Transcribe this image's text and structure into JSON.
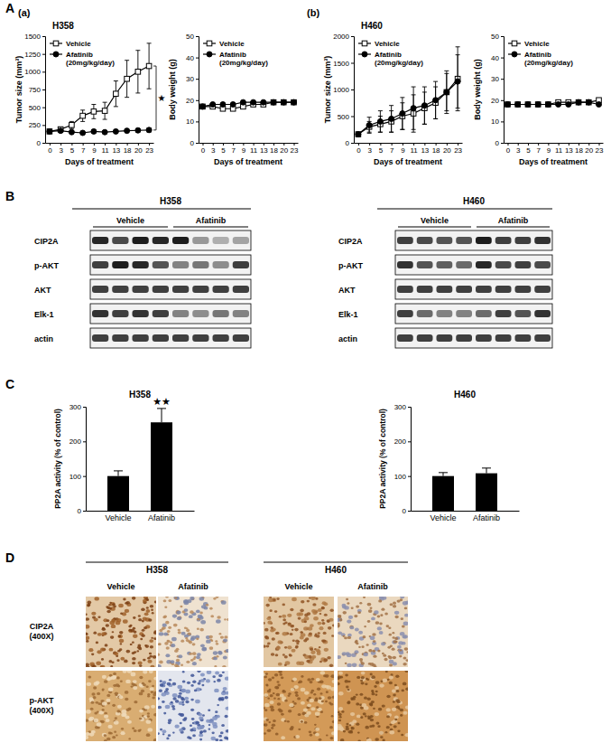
{
  "figure": {
    "panel_labels": [
      "A",
      "B",
      "C",
      "D"
    ],
    "subpanel_labels": [
      "(a)",
      "(b)"
    ]
  },
  "chart_data": [
    {
      "type": "line",
      "title": "H358",
      "x_label": "Days of treatment",
      "y_label": "Tumor size (mm³)",
      "categories": [
        "0",
        "3",
        "5",
        "7",
        "9",
        "11",
        "13",
        "18",
        "20",
        "23"
      ],
      "ylim": [
        0,
        1500
      ],
      "yticks": [
        0,
        250,
        500,
        750,
        1000,
        1250,
        1500
      ],
      "legend": "upper left",
      "annotations": [
        {
          "text": "★"
        }
      ],
      "series": [
        {
          "name": "Vehicle",
          "color": "#000000",
          "marker": "square-open",
          "values": [
            160,
            190,
            250,
            380,
            440,
            450,
            690,
            900,
            1000,
            1080
          ],
          "errors": [
            20,
            30,
            50,
            80,
            100,
            120,
            180,
            260,
            300,
            320
          ]
        },
        {
          "name": "Afatinib (20mg/kg/day)",
          "color": "#000000",
          "marker": "circle",
          "values": [
            160,
            170,
            150,
            140,
            160,
            150,
            160,
            170,
            175,
            180
          ],
          "errors": [
            15,
            20,
            20,
            20,
            25,
            20,
            20,
            25,
            25,
            30
          ]
        }
      ]
    },
    {
      "type": "line",
      "x_label": "Days of treatment",
      "y_label": "Body weight (g)",
      "categories": [
        "0",
        "3",
        "5",
        "7",
        "9",
        "11",
        "13",
        "18",
        "20",
        "23"
      ],
      "ylim": [
        0,
        50
      ],
      "yticks": [
        0,
        10,
        20,
        30,
        40,
        50
      ],
      "legend": "upper left",
      "series": [
        {
          "name": "Vehicle",
          "color": "#000000",
          "marker": "square-open",
          "values": [
            17,
            17,
            16,
            16,
            17,
            18,
            18,
            19,
            19,
            19
          ]
        },
        {
          "name": "Afatinib (20mg/kg/day)",
          "color": "#000000",
          "marker": "circle",
          "values": [
            17,
            18,
            18,
            18,
            19,
            19,
            19,
            19,
            19,
            19
          ]
        }
      ]
    },
    {
      "type": "line",
      "title": "H460",
      "x_label": "Days of treatment",
      "y_label": "Tumor size (mm³)",
      "categories": [
        "0",
        "3",
        "5",
        "7",
        "9",
        "11",
        "13",
        "18",
        "20",
        "23"
      ],
      "ylim": [
        0,
        2000
      ],
      "yticks": [
        0,
        500,
        1000,
        1500,
        2000
      ],
      "legend": "upper left",
      "series": [
        {
          "name": "Vehicle",
          "color": "#000000",
          "marker": "square-open",
          "values": [
            160,
            300,
            350,
            400,
            500,
            550,
            650,
            750,
            950,
            1200
          ],
          "errors": [
            20,
            100,
            150,
            200,
            250,
            350,
            300,
            300,
            350,
            600
          ]
        },
        {
          "name": "Afatinib (20mg/kg/day)",
          "color": "#000000",
          "marker": "circle",
          "values": [
            160,
            330,
            400,
            450,
            550,
            650,
            700,
            800,
            950,
            1150
          ],
          "errors": [
            20,
            150,
            200,
            250,
            300,
            400,
            350,
            350,
            400,
            500
          ]
        }
      ]
    },
    {
      "type": "line",
      "x_label": "Days of treatment",
      "y_label": "Body weight (g)",
      "categories": [
        "0",
        "3",
        "5",
        "7",
        "9",
        "11",
        "13",
        "18",
        "20",
        "23"
      ],
      "ylim": [
        0,
        50
      ],
      "yticks": [
        0,
        10,
        20,
        30,
        40,
        50
      ],
      "legend": "upper left",
      "series": [
        {
          "name": "Vehicle",
          "color": "#000000",
          "marker": "square-open",
          "values": [
            18,
            18,
            18,
            18,
            18,
            19,
            19,
            19,
            19,
            20
          ]
        },
        {
          "name": "Afatinib (20mg/kg/day)",
          "color": "#000000",
          "marker": "circle",
          "values": [
            18,
            18,
            18,
            18,
            18,
            18,
            18,
            19,
            19,
            18
          ]
        }
      ]
    },
    {
      "type": "bar",
      "title": "H358",
      "y_label": "PP2A activity (% of control)",
      "categories": [
        "Vehicle",
        "Afatinib"
      ],
      "values": [
        100,
        255
      ],
      "errors": [
        15,
        40
      ],
      "color": "#000000",
      "ylim": [
        0,
        300
      ],
      "yticks": [
        0,
        100,
        200,
        300
      ],
      "annotations": [
        {
          "text": "★★"
        }
      ]
    },
    {
      "type": "bar",
      "title": "H460",
      "y_label": "PP2A activity (% of control)",
      "categories": [
        "Vehicle",
        "Afatinib"
      ],
      "values": [
        100,
        108
      ],
      "errors": [
        10,
        15
      ],
      "color": "#000000",
      "ylim": [
        0,
        300
      ],
      "yticks": [
        0,
        100,
        200,
        300
      ]
    }
  ],
  "blots": [
    {
      "title": "H358",
      "groups": [
        "Vehicle",
        "Afatinib"
      ],
      "rows": [
        "CIP2A",
        "p-AKT",
        "AKT",
        "Elk-1",
        "actin"
      ]
    },
    {
      "title": "H460",
      "groups": [
        "Vehicle",
        "Afatinib"
      ],
      "rows": [
        "CIP2A",
        "p-AKT",
        "AKT",
        "Elk-1",
        "actin"
      ]
    }
  ],
  "ihc": {
    "cell_lines": [
      "H358",
      "H460"
    ],
    "treatments": [
      "Vehicle",
      "Afatinib"
    ],
    "stains": [
      [
        "CIP2A",
        "(400X)"
      ],
      [
        "p-AKT",
        "(400X)"
      ]
    ]
  }
}
